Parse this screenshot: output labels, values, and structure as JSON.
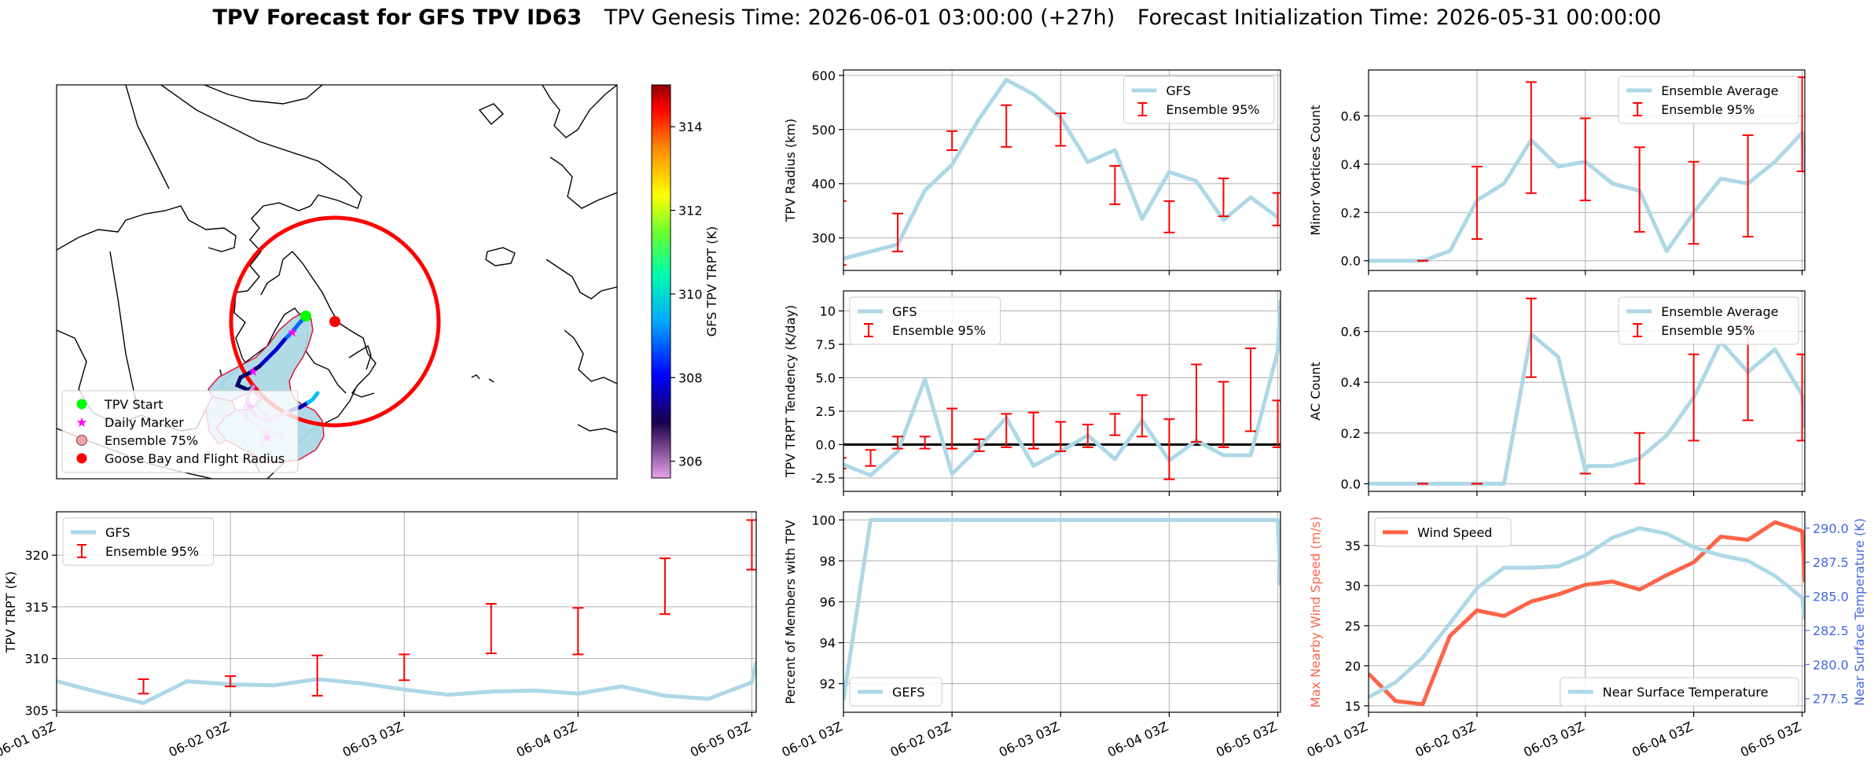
{
  "figure": {
    "title_bold": "TPV Forecast for GFS TPV ID63",
    "title_genesis": "TPV Genesis Time: 2026-06-01 03:00:00 (+27h)",
    "title_init": "Forecast Initialization Time: 2026-05-31 00:00:00"
  },
  "colors": {
    "gfs": "#add8e6",
    "ensemble": "#ff0000",
    "wind": "#ff6347",
    "temp_axis": "#4169e1",
    "zero_line": "#000000"
  },
  "map": {
    "colorbar_label": "GFS TPV TRPT (K)",
    "colorbar_ticks": [
      306,
      308,
      310,
      312,
      314
    ],
    "colorbar_range": [
      305.6,
      315.0
    ],
    "legend": [
      {
        "label": "TPV Start",
        "marker": "circle",
        "color": "#00ff00"
      },
      {
        "label": "Daily Marker",
        "marker": "star",
        "color": "#ff00ff"
      },
      {
        "label": "Ensemble 75%",
        "marker": "circle",
        "color": "#f4a4a4"
      },
      {
        "label": "Goose Bay and Flight Radius",
        "marker": "circle",
        "color": "#ff0000"
      }
    ]
  },
  "x_tick_labels": [
    "06-01 03Z",
    "06-02 03Z",
    "06-03 03Z",
    "06-04 03Z",
    "06-05 03Z"
  ],
  "chart_data": [
    {
      "id": "trpt",
      "type": "line",
      "ylabel": "TPV TRPT (K)",
      "xlim": [
        0,
        16.1
      ],
      "ylim": [
        304.8,
        324.2
      ],
      "yticks": [
        305,
        310,
        315,
        320
      ],
      "x_ticks": [
        0,
        4,
        8,
        12,
        16
      ],
      "legend": [
        "GFS",
        "Ensemble 95%"
      ],
      "series": [
        {
          "name": "GFS",
          "x": [
            0,
            1,
            2,
            3,
            4,
            5,
            6,
            7,
            8,
            9,
            10,
            11,
            12,
            13,
            14,
            15,
            16,
            16.1
          ],
          "y": [
            307.8,
            306.7,
            305.7,
            307.8,
            307.5,
            307.4,
            308.0,
            307.6,
            307.0,
            306.5,
            306.8,
            306.9,
            306.6,
            307.3,
            306.4,
            306.1,
            307.7,
            309.7
          ]
        },
        {
          "name": "Ensemble 95%",
          "errorbars": [
            {
              "x": 2,
              "low": 306.6,
              "high": 308.0
            },
            {
              "x": 4,
              "low": 307.3,
              "high": 308.3
            },
            {
              "x": 6,
              "low": 306.4,
              "high": 310.3
            },
            {
              "x": 8,
              "low": 307.9,
              "high": 310.4
            },
            {
              "x": 10,
              "low": 310.5,
              "high": 315.3
            },
            {
              "x": 12,
              "low": 310.4,
              "high": 314.9
            },
            {
              "x": 14,
              "low": 314.3,
              "high": 319.7
            },
            {
              "x": 16,
              "low": 318.6,
              "high": 323.4
            }
          ]
        }
      ]
    },
    {
      "id": "radius",
      "type": "line",
      "ylabel": "TPV Radius (km)",
      "xlim": [
        0,
        16.1
      ],
      "ylim": [
        240,
        610
      ],
      "yticks": [
        300,
        400,
        500,
        600
      ],
      "x_ticks": [
        0,
        4,
        8,
        12,
        16
      ],
      "legend": [
        "GFS",
        "Ensemble 95%"
      ],
      "series": [
        {
          "name": "GFS",
          "x": [
            0,
            1,
            2,
            3,
            4,
            5,
            6,
            7,
            8,
            9,
            10,
            11,
            12,
            13,
            14,
            15,
            16
          ],
          "y": [
            262,
            275,
            288,
            388,
            435,
            520,
            592,
            565,
            522,
            440,
            462,
            335,
            422,
            405,
            333,
            375,
            338
          ]
        },
        {
          "name": "Ensemble 95%",
          "errorbars": [
            {
              "x": -0.1,
              "low": 250,
              "high": 368
            },
            {
              "x": 2,
              "low": 275,
              "high": 345
            },
            {
              "x": 4,
              "low": 462,
              "high": 497
            },
            {
              "x": 6,
              "low": 468,
              "high": 545
            },
            {
              "x": 8,
              "low": 470,
              "high": 530
            },
            {
              "x": 10,
              "low": 362,
              "high": 433
            },
            {
              "x": 12,
              "low": 310,
              "high": 368
            },
            {
              "x": 14,
              "low": 340,
              "high": 410
            },
            {
              "x": 16,
              "low": 323,
              "high": 383
            }
          ]
        }
      ]
    },
    {
      "id": "tendency",
      "type": "line",
      "ylabel": "TPV TRPT Tendency (K/day)",
      "xlim": [
        0,
        16.1
      ],
      "ylim": [
        -3.5,
        11.5
      ],
      "yticks": [
        -2.5,
        0.0,
        2.5,
        5.0,
        7.5,
        10.0
      ],
      "x_ticks": [
        0,
        4,
        8,
        12,
        16
      ],
      "legend": [
        "GFS",
        "Ensemble 95%"
      ],
      "series": [
        {
          "name": "GFS",
          "x": [
            0,
            1,
            2,
            3,
            4,
            5,
            6,
            7,
            8,
            9,
            10,
            11,
            12,
            13,
            14,
            15,
            16,
            16.1
          ],
          "y": [
            -1.5,
            -2.3,
            -0.5,
            4.9,
            -2.2,
            -0.2,
            2.0,
            -1.6,
            -0.5,
            0.7,
            -1.1,
            1.8,
            -1.2,
            0.3,
            -0.8,
            -0.8,
            7.0,
            10.8
          ]
        },
        {
          "name": "Ensemble 95%",
          "errorbars": [
            {
              "x": -0.1,
              "low": -1.8,
              "high": -1.0
            },
            {
              "x": 1,
              "low": -1.6,
              "high": -0.4
            },
            {
              "x": 2,
              "low": -0.3,
              "high": 0.6
            },
            {
              "x": 3,
              "low": -0.3,
              "high": 0.6
            },
            {
              "x": 4,
              "low": -0.3,
              "high": 2.7
            },
            {
              "x": 5,
              "low": -0.5,
              "high": 0.4
            },
            {
              "x": 6,
              "low": -0.2,
              "high": 2.3
            },
            {
              "x": 7,
              "low": -0.3,
              "high": 2.4
            },
            {
              "x": 8,
              "low": -0.5,
              "high": 1.7
            },
            {
              "x": 9,
              "low": -0.2,
              "high": 1.5
            },
            {
              "x": 10,
              "low": 0.7,
              "high": 2.3
            },
            {
              "x": 11,
              "low": 0.6,
              "high": 3.7
            },
            {
              "x": 12,
              "low": -2.6,
              "high": 1.9
            },
            {
              "x": 13,
              "low": 0.2,
              "high": 6.0
            },
            {
              "x": 14,
              "low": -0.2,
              "high": 4.7
            },
            {
              "x": 15,
              "low": 1.0,
              "high": 7.2
            },
            {
              "x": 16,
              "low": -0.2,
              "high": 3.3
            }
          ]
        }
      ]
    },
    {
      "id": "percent",
      "type": "line",
      "ylabel": "Percent of Members with TPV",
      "xlim": [
        0,
        16.1
      ],
      "ylim": [
        90.6,
        100.4
      ],
      "yticks": [
        92,
        94,
        96,
        98,
        100
      ],
      "x_ticks": [
        0,
        4,
        8,
        12,
        16
      ],
      "legend": [
        "GEFS"
      ],
      "series": [
        {
          "name": "GEFS",
          "x": [
            0,
            1,
            2,
            3,
            4,
            5,
            6,
            7,
            8,
            9,
            10,
            11,
            12,
            13,
            14,
            15,
            16,
            16.1
          ],
          "y": [
            91.2,
            100,
            100,
            100,
            100,
            100,
            100,
            100,
            100,
            100,
            100,
            100,
            100,
            100,
            100,
            100,
            100,
            96.8
          ]
        }
      ]
    },
    {
      "id": "minor",
      "type": "line",
      "ylabel": "Minor Vortices Count",
      "xlim": [
        0,
        16.1
      ],
      "ylim": [
        -0.04,
        0.79
      ],
      "yticks": [
        0.0,
        0.2,
        0.4,
        0.6
      ],
      "x_ticks": [
        0,
        4,
        8,
        12,
        16
      ],
      "legend": [
        "Ensemble Average",
        "Ensemble 95%"
      ],
      "series": [
        {
          "name": "Ensemble Average",
          "x": [
            0,
            1,
            2,
            3,
            4,
            5,
            6,
            7,
            8,
            9,
            10,
            11,
            12,
            13,
            14,
            15,
            16,
            16.1
          ],
          "y": [
            0,
            0,
            0,
            0.04,
            0.25,
            0.32,
            0.5,
            0.39,
            0.41,
            0.32,
            0.29,
            0.04,
            0.2,
            0.34,
            0.32,
            0.41,
            0.53,
            0.36
          ]
        },
        {
          "name": "Ensemble 95%",
          "errorbars": [
            {
              "x": 2,
              "low": 0,
              "high": 0
            },
            {
              "x": 4,
              "low": 0.09,
              "high": 0.39
            },
            {
              "x": 6,
              "low": 0.28,
              "high": 0.74
            },
            {
              "x": 8,
              "low": 0.25,
              "high": 0.59
            },
            {
              "x": 10,
              "low": 0.12,
              "high": 0.47
            },
            {
              "x": 12,
              "low": 0.07,
              "high": 0.41
            },
            {
              "x": 14,
              "low": 0.1,
              "high": 0.52
            },
            {
              "x": 16,
              "low": 0.37,
              "high": 0.76
            }
          ]
        }
      ]
    },
    {
      "id": "ac",
      "type": "line",
      "ylabel": "AC Count",
      "xlim": [
        0,
        16.1
      ],
      "ylim": [
        -0.03,
        0.76
      ],
      "yticks": [
        0.0,
        0.2,
        0.4,
        0.6
      ],
      "x_ticks": [
        0,
        4,
        8,
        12,
        16
      ],
      "legend": [
        "Ensemble Average",
        "Ensemble 95%"
      ],
      "series": [
        {
          "name": "Ensemble Average",
          "x": [
            0,
            1,
            2,
            3,
            4,
            5,
            6,
            7,
            8,
            8.1,
            9,
            10,
            11,
            12,
            13,
            14,
            15,
            16,
            16.1
          ],
          "y": [
            0,
            0,
            0,
            0,
            0,
            0,
            0.59,
            0.5,
            0.05,
            0.07,
            0.07,
            0.1,
            0.19,
            0.34,
            0.56,
            0.44,
            0.53,
            0.35,
            0.22
          ]
        },
        {
          "name": "Ensemble 95%",
          "errorbars": [
            {
              "x": 2,
              "low": 0,
              "high": 0
            },
            {
              "x": 4,
              "low": 0,
              "high": 0
            },
            {
              "x": 6,
              "low": 0.42,
              "high": 0.73
            },
            {
              "x": 8,
              "low": 0.04,
              "high": 0.04
            },
            {
              "x": 10,
              "low": 0.0,
              "high": 0.2
            },
            {
              "x": 12,
              "low": 0.17,
              "high": 0.51
            },
            {
              "x": 14,
              "low": 0.25,
              "high": 0.62
            },
            {
              "x": 16,
              "low": 0.17,
              "high": 0.51
            }
          ]
        }
      ]
    },
    {
      "id": "wind",
      "type": "line",
      "ylabel": "Max Nearby Wind Speed (m/s)",
      "ylabel_right": "Near Surface Temperature (K)",
      "xlim": [
        0,
        16.1
      ],
      "ylim": [
        14.2,
        39.2
      ],
      "yticks": [
        15,
        20,
        25,
        30,
        35
      ],
      "ylim_right": [
        276.5,
        291.2
      ],
      "yticks_right": [
        277.5,
        280.0,
        282.5,
        285.0,
        287.5,
        290.0
      ],
      "x_ticks": [
        0,
        4,
        8,
        12,
        16
      ],
      "legend": [
        "Wind Speed"
      ],
      "legend_right": [
        "Near Surface Temperature"
      ],
      "series": [
        {
          "name": "Wind Speed",
          "axis": "left",
          "x": [
            0,
            1,
            2,
            3,
            4,
            5,
            6,
            7,
            8,
            9,
            10,
            11,
            12,
            13,
            14,
            15,
            16,
            16.1
          ],
          "y": [
            19.0,
            15.6,
            15.2,
            23.7,
            26.9,
            26.2,
            28.0,
            28.9,
            30.1,
            30.5,
            29.5,
            31.3,
            32.9,
            36.1,
            35.7,
            37.9,
            36.8,
            30.4
          ]
        },
        {
          "name": "Near Surface Temperature",
          "axis": "right",
          "x": [
            0,
            1,
            2,
            3,
            4,
            5,
            6,
            7,
            8,
            9,
            10,
            11,
            12,
            13,
            14,
            15,
            16,
            16.1
          ],
          "y": [
            277.6,
            278.7,
            280.5,
            283.0,
            285.6,
            287.1,
            287.1,
            287.2,
            288.0,
            289.3,
            290.0,
            289.6,
            288.6,
            288.0,
            287.6,
            286.5,
            284.9,
            283.3
          ]
        }
      ]
    }
  ]
}
